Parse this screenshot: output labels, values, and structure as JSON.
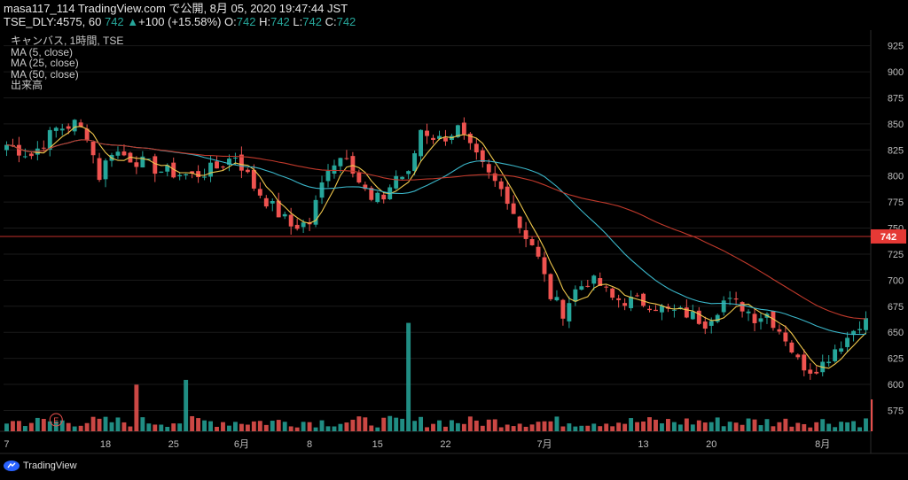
{
  "header": {
    "line1": "masa117_114 TradingView.com で公開, 8月 05, 2020 19:47:44 JST",
    "symbol": "TSE_DLY:4575, 60",
    "last": "742",
    "arrow": "▲",
    "change": "+100 (+15.58%)",
    "o_label": "O:",
    "o_value": "742",
    "h_label": "H:",
    "h_value": "742",
    "l_label": "L:",
    "l_value": "742",
    "c_label": "C:",
    "c_value": "742"
  },
  "legend": [
    "キャンバス, 1時間, TSE",
    "MA (5, close)",
    "MA (25, close)",
    "MA (50, close)",
    "出来高"
  ],
  "footer": {
    "brand": "TradingView"
  },
  "colors": {
    "background": "#000000",
    "up": "#26a69a",
    "down": "#ef5350",
    "ma5": "#f2c94c",
    "ma25": "#3ab6c9",
    "ma50": "#c0392b",
    "price_line": "#e53935",
    "grid": "#1a1a1a"
  },
  "chart_data": {
    "type": "candlestick",
    "title": "",
    "ylim": [
      555,
      940
    ],
    "y_ticks": [
      925,
      900,
      875,
      850,
      825,
      800,
      775,
      750,
      725,
      700,
      675,
      650,
      625,
      600,
      575
    ],
    "current_price_label": "742",
    "current_price": 742,
    "x_tick_labels": [
      "7",
      "18",
      "25",
      "6月",
      "8",
      "15",
      "22",
      "7月",
      "13",
      "20",
      "8月"
    ],
    "x_tick_index": [
      0,
      16,
      27,
      38,
      49,
      60,
      71,
      87,
      103,
      114,
      132
    ],
    "n_bars": 140,
    "series": [
      {
        "name": "MA (5, close)"
      },
      {
        "name": "MA (25, close)"
      },
      {
        "name": "MA (50, close)"
      },
      {
        "name": "出来高"
      }
    ],
    "price_path_knots": [
      [
        0,
        830
      ],
      [
        4,
        820
      ],
      [
        8,
        845
      ],
      [
        11,
        850
      ],
      [
        13,
        840
      ],
      [
        15,
        800
      ],
      [
        17,
        825
      ],
      [
        21,
        815
      ],
      [
        25,
        805
      ],
      [
        30,
        800
      ],
      [
        34,
        808
      ],
      [
        37,
        820
      ],
      [
        40,
        790
      ],
      [
        43,
        770
      ],
      [
        46,
        752
      ],
      [
        49,
        755
      ],
      [
        52,
        810
      ],
      [
        55,
        822
      ],
      [
        57,
        795
      ],
      [
        59,
        775
      ],
      [
        61,
        780
      ],
      [
        63,
        800
      ],
      [
        65,
        800
      ],
      [
        67,
        845
      ],
      [
        70,
        835
      ],
      [
        73,
        845
      ],
      [
        75,
        825
      ],
      [
        78,
        800
      ],
      [
        81,
        780
      ],
      [
        83,
        752
      ],
      [
        85,
        735
      ],
      [
        86,
        720
      ],
      [
        88,
        685
      ],
      [
        90,
        670
      ],
      [
        92,
        690
      ],
      [
        94,
        700
      ],
      [
        96,
        695
      ],
      [
        98,
        682
      ],
      [
        101,
        680
      ],
      [
        104,
        678
      ],
      [
        107,
        670
      ],
      [
        110,
        668
      ],
      [
        113,
        660
      ],
      [
        116,
        680
      ],
      [
        119,
        675
      ],
      [
        121,
        665
      ],
      [
        123,
        668
      ],
      [
        126,
        645
      ],
      [
        128,
        622
      ],
      [
        130,
        615
      ],
      [
        132,
        620
      ],
      [
        134,
        635
      ],
      [
        136,
        645
      ],
      [
        138,
        660
      ]
    ],
    "volume_spikes": [
      [
        65,
        565
      ],
      [
        29,
        268
      ],
      [
        21,
        243
      ]
    ]
  }
}
